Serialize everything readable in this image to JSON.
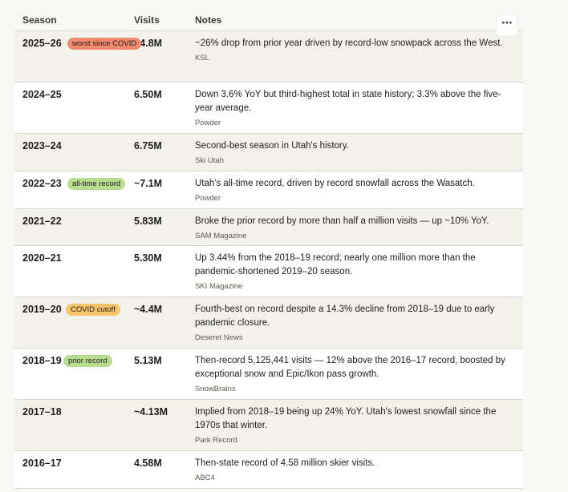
{
  "table": {
    "columns": {
      "season": "Season",
      "visits": "Visits",
      "notes": "Notes"
    },
    "menu_icon": "⋯",
    "rows": [
      {
        "season": "2025–26",
        "badge": "worst since COVID",
        "badge_color": "#f08a6e",
        "visits": "~4.8M",
        "note": "~26% drop from prior year driven by record-low snowpack across the West.",
        "source": "KSL"
      },
      {
        "season": "2024–25",
        "badge": "",
        "visits": "6.50M",
        "note": "Down 3.6% YoY but third-highest total in state history; 3.3% above the five-year average.",
        "source": "Powder"
      },
      {
        "season": "2023–24",
        "badge": "",
        "visits": "6.75M",
        "note": "Second-best season in Utah's history.",
        "source": "Ski Utah"
      },
      {
        "season": "2022–23",
        "badge": "all-time record",
        "badge_color": "#b7dc8e",
        "visits": "~7.1M",
        "note": "Utah's all-time record, driven by record snowfall across the Wasatch.",
        "source": "Powder"
      },
      {
        "season": "2021–22",
        "badge": "",
        "visits": "5.83M",
        "note": "Broke the prior record by more than half a million visits — up ~10% YoY.",
        "source": "SAM Magazine"
      },
      {
        "season": "2020–21",
        "badge": "",
        "visits": "5.30M",
        "note": "Up 3.44% from the 2018–19 record; nearly one million more than the pandemic-shortened 2019–20 season.",
        "source": "SKI Magazine"
      },
      {
        "season": "2019–20",
        "badge": "COVID cutoff",
        "badge_color": "#f7c46a",
        "visits": "~4.4M",
        "note": "Fourth-best on record despite a 14.3% decline from 2018–19 due to early pandemic closure.",
        "source": "Deseret News"
      },
      {
        "season": "2018–19",
        "badge": "prior record",
        "badge_color": "#b7dc8e",
        "visits": "5.13M",
        "note": "Then-record 5,125,441 visits — 12% above the 2016–17 record, boosted by exceptional snow and Epic/Ikon pass growth.",
        "source": "SnowBrains"
      },
      {
        "season": "2017–18",
        "badge": "",
        "visits": "~4.13M",
        "note": "Implied from 2018–19 being up 24% YoY. Utah's lowest snowfall since the 1970s that winter.",
        "source": "Park Record"
      },
      {
        "season": "2016–17",
        "badge": "",
        "visits": "4.58M",
        "note": "Then-state record of 4.58 million skier visits.",
        "source": "ABC4"
      }
    ]
  }
}
